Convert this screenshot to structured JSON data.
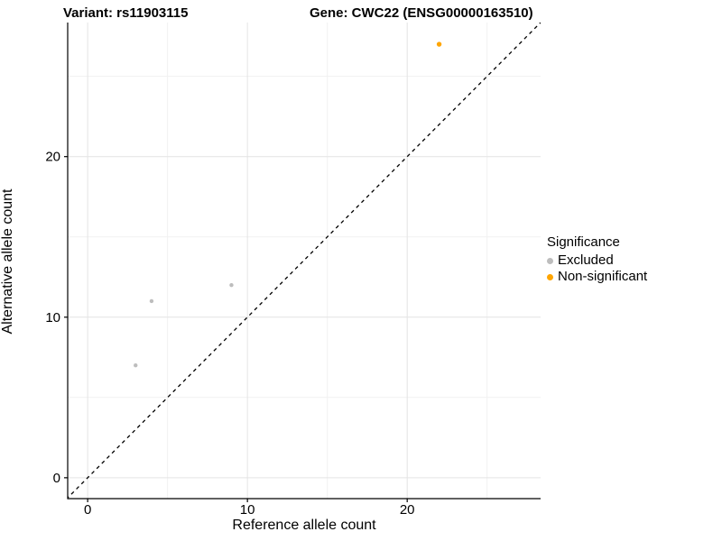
{
  "chart_data": {
    "type": "scatter",
    "title_left": "Variant: rs11903115",
    "title_right": "Gene: CWC22 (ENSG00000163510)",
    "xlabel": "Reference allele count",
    "ylabel": "Alternative allele count",
    "xlim": [
      -1.25,
      28.35
    ],
    "ylim": [
      -1.3,
      28.35
    ],
    "x_ticks": [
      0,
      10,
      20
    ],
    "y_ticks": [
      0,
      10,
      20
    ],
    "x_minor_ticks": [
      5,
      15,
      25
    ],
    "y_minor_ticks": [
      5,
      15,
      25
    ],
    "grid": "on",
    "legend_position": "right",
    "identity_line": {
      "slope": 1,
      "intercept": 0,
      "style": "dashed",
      "color": "#000000"
    },
    "series": [
      {
        "name": "Excluded",
        "color": "#bdbdbd",
        "point_radius": 2.2,
        "points": [
          {
            "x": 3,
            "y": 7
          },
          {
            "x": 4,
            "y": 11
          },
          {
            "x": 9,
            "y": 12
          }
        ]
      },
      {
        "name": "Non-significant",
        "color": "#ffa500",
        "point_radius": 2.7,
        "points": [
          {
            "x": 22,
            "y": 27
          }
        ]
      }
    ]
  },
  "legend": {
    "title": "Significance",
    "items": [
      {
        "label": "Excluded",
        "color": "#bdbdbd"
      },
      {
        "label": "Non-significant",
        "color": "#ffa500"
      }
    ]
  },
  "style_colors": {
    "grid_major": "#e4e4e4",
    "grid_minor": "#f1f1f1",
    "axis_line": "#000000",
    "tick_label": "#000000"
  }
}
